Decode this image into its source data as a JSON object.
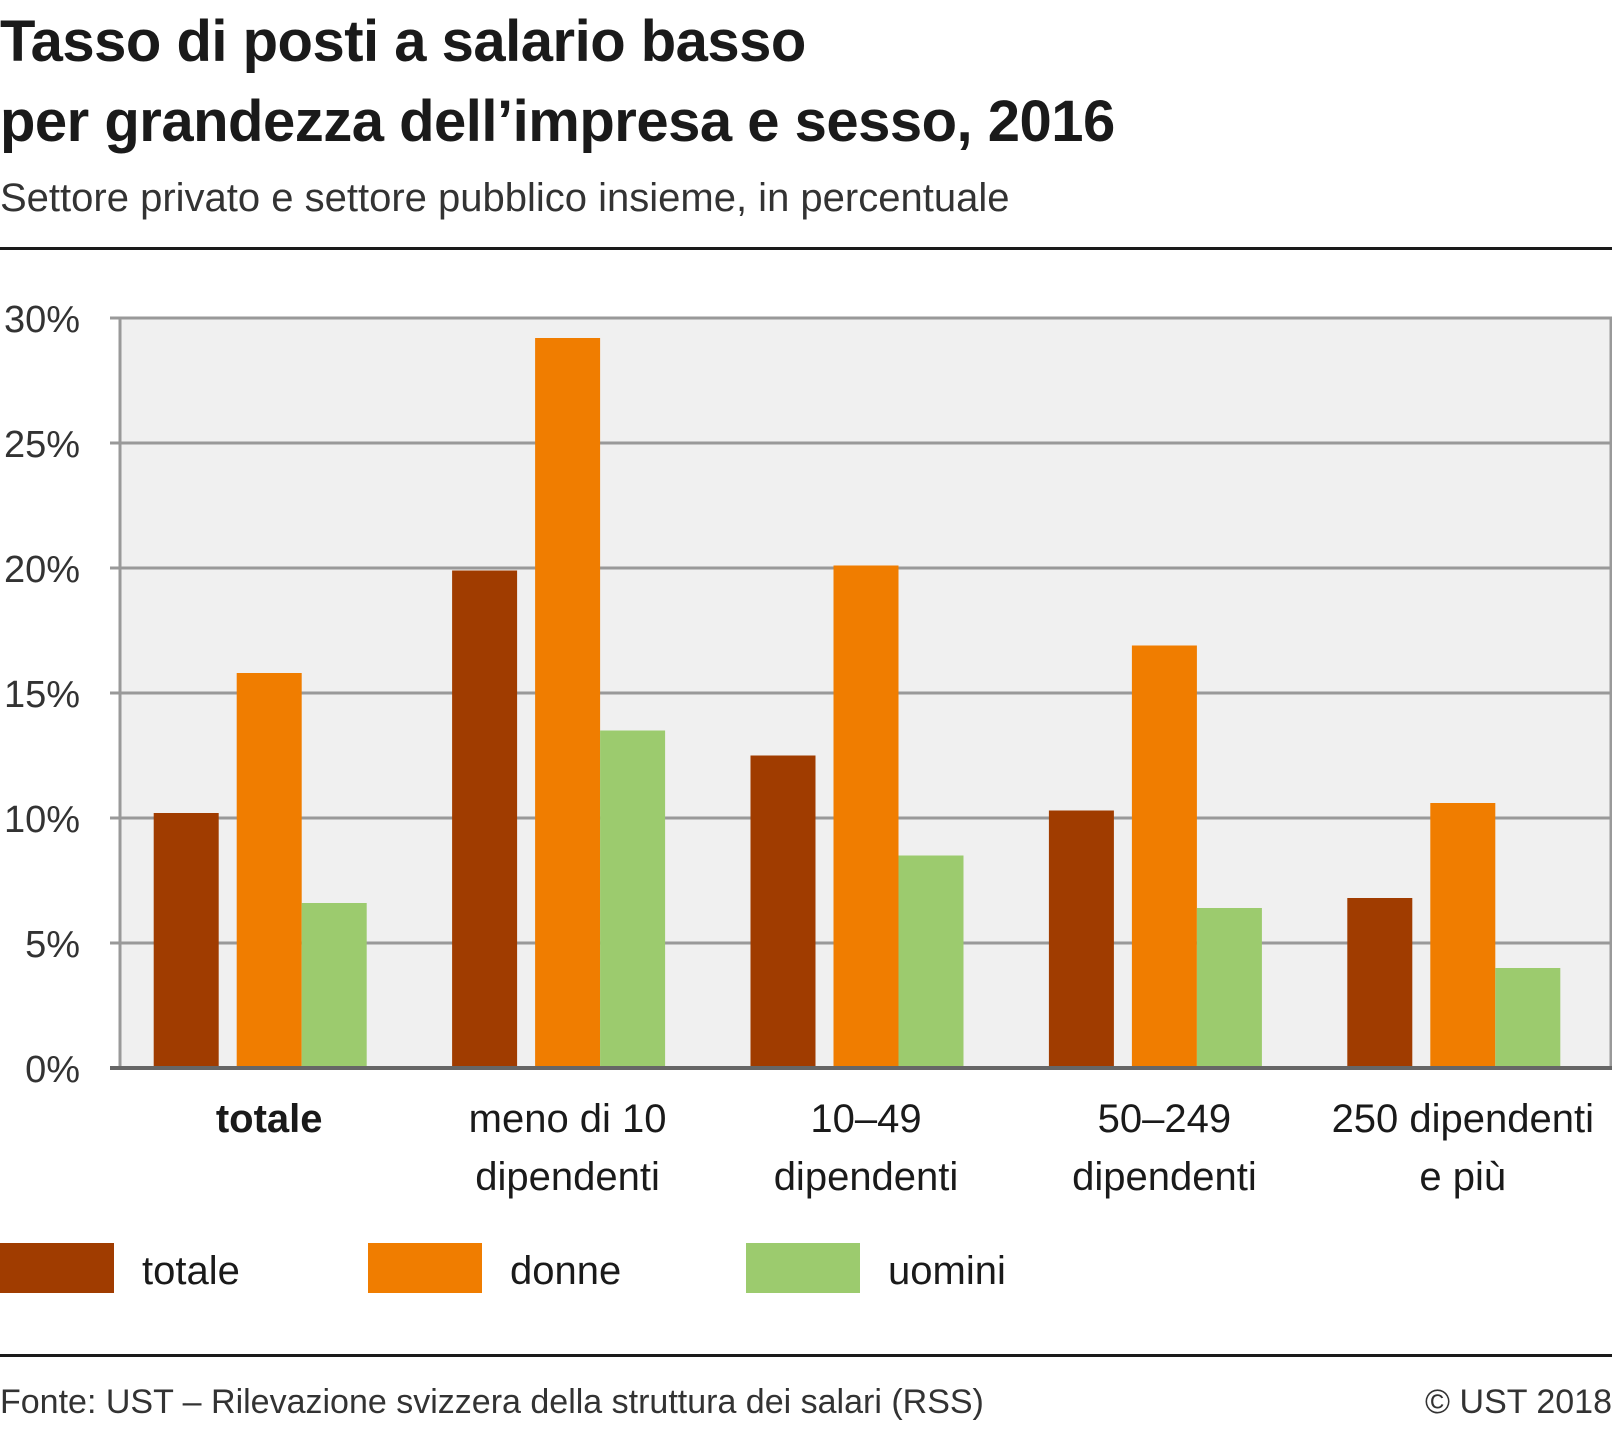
{
  "title_line1": "Tasso di posti a salario basso",
  "title_line2": "per grandezza dell’impresa e sesso, 2016",
  "subtitle": "Settore privato e settore pubblico insieme, in percentuale",
  "footer": {
    "source": "Fonte: UST – Rilevazione svizzera della struttura dei salari (RSS)",
    "copyright": "© UST 2018"
  },
  "colors": {
    "totale": "#a03c00",
    "donne": "#f07d00",
    "uomini": "#9ccb6e",
    "plot_bg": "#f0f0f0",
    "grid": "#999999"
  },
  "chart_data": {
    "type": "bar",
    "categories": [
      [
        "totale"
      ],
      [
        "meno di 10",
        "dipendenti"
      ],
      [
        "10–49",
        "dipendenti"
      ],
      [
        "50–249",
        "dipendenti"
      ],
      [
        "250 dipendenti",
        "e più"
      ]
    ],
    "category_bold": [
      true,
      false,
      false,
      false,
      false
    ],
    "series": [
      {
        "name": "totale",
        "values": [
          10.2,
          19.9,
          12.5,
          10.3,
          6.8
        ]
      },
      {
        "name": "donne",
        "values": [
          15.8,
          29.2,
          20.1,
          16.9,
          10.6
        ]
      },
      {
        "name": "uomini",
        "values": [
          6.6,
          13.5,
          8.5,
          6.4,
          4.0
        ]
      }
    ],
    "ylim": [
      0,
      30
    ],
    "yticks": [
      0,
      5,
      10,
      15,
      20,
      25,
      30
    ],
    "ytick_labels": [
      "0%",
      "5%",
      "10%",
      "15%",
      "20%",
      "25%",
      "30%"
    ],
    "grid": true,
    "legend_position": "bottom"
  }
}
